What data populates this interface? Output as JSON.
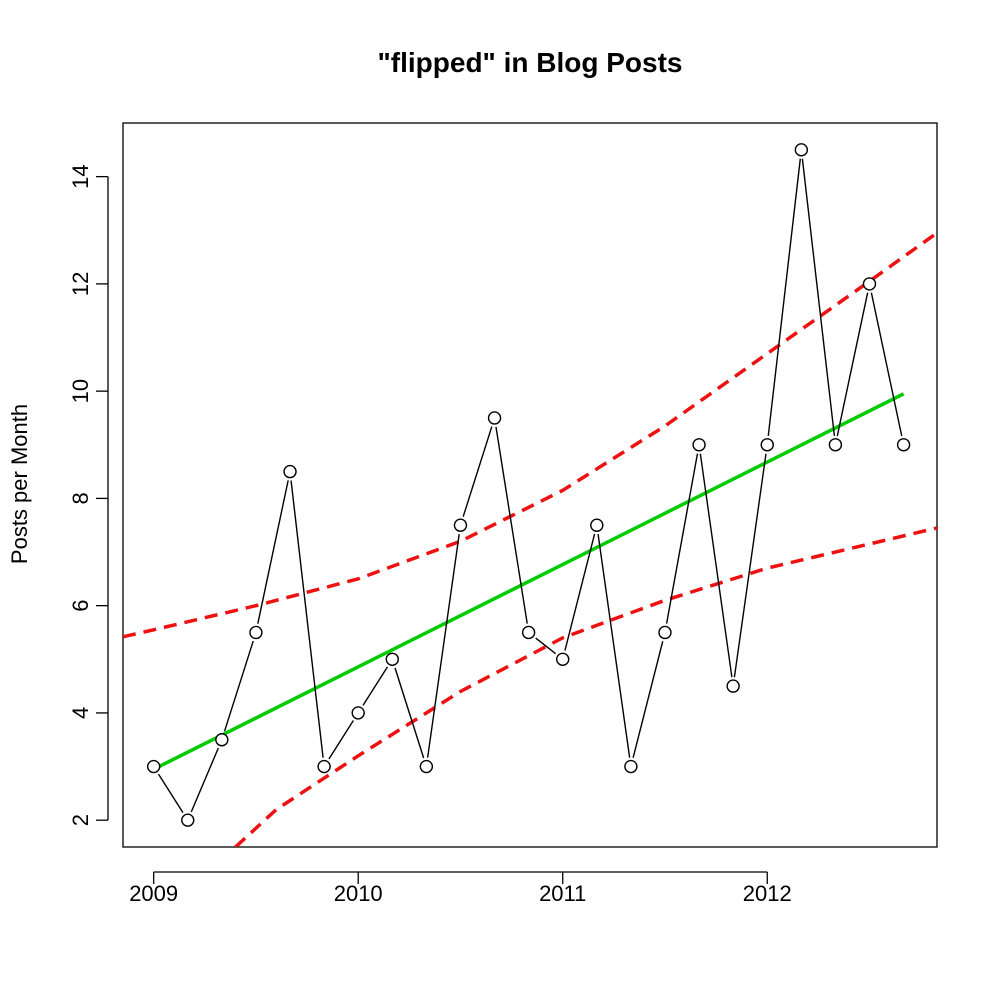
{
  "chart_data": {
    "type": "line",
    "title": "\"flipped\" in Blog Posts",
    "xlabel": "",
    "ylabel": "Posts per Month",
    "x_ticks": [
      2009,
      2010,
      2011,
      2012
    ],
    "y_ticks": [
      2,
      4,
      6,
      8,
      10,
      12,
      14
    ],
    "xlim": [
      2008.85,
      2012.83
    ],
    "ylim": [
      1.5,
      15.0
    ],
    "grid": false,
    "legend": "none",
    "series": [
      {
        "kind": "observed",
        "color": "#000000",
        "x": [
          2009.0,
          2009.1667,
          2009.3333,
          2009.5,
          2009.6667,
          2009.8333,
          2010.0,
          2010.1667,
          2010.3333,
          2010.5,
          2010.6667,
          2010.8333,
          2011.0,
          2011.1667,
          2011.3333,
          2011.5,
          2011.6667,
          2011.8333,
          2012.0,
          2012.1667,
          2012.3333,
          2012.5,
          2012.6667
        ],
        "y": [
          3,
          2,
          3.5,
          5.5,
          8.5,
          3,
          4,
          5,
          3,
          7.5,
          9.5,
          5.5,
          5,
          7.5,
          3,
          5.5,
          9,
          4.5,
          9,
          14.5,
          9,
          12,
          9
        ]
      },
      {
        "kind": "trend",
        "color": "#00cc00",
        "x": [
          2009.0,
          2012.6667
        ],
        "y": [
          2.95,
          9.95
        ]
      },
      {
        "kind": "upper-bound",
        "color": "#ee1111",
        "x": [
          2008.85,
          2009.0,
          2009.5,
          2010.0,
          2010.5,
          2011.0,
          2011.5,
          2012.0,
          2012.5,
          2012.83
        ],
        "y": [
          5.42,
          5.55,
          6.0,
          6.5,
          7.2,
          8.15,
          9.35,
          10.7,
          12.05,
          12.95
        ]
      },
      {
        "kind": "lower-bound",
        "color": "#ee1111",
        "x": [
          2009.4,
          2009.6,
          2010.0,
          2010.5,
          2011.0,
          2011.5,
          2012.0,
          2012.5,
          2012.83
        ],
        "y": [
          1.5,
          2.2,
          3.2,
          4.4,
          5.4,
          6.1,
          6.7,
          7.15,
          7.45
        ]
      }
    ]
  }
}
